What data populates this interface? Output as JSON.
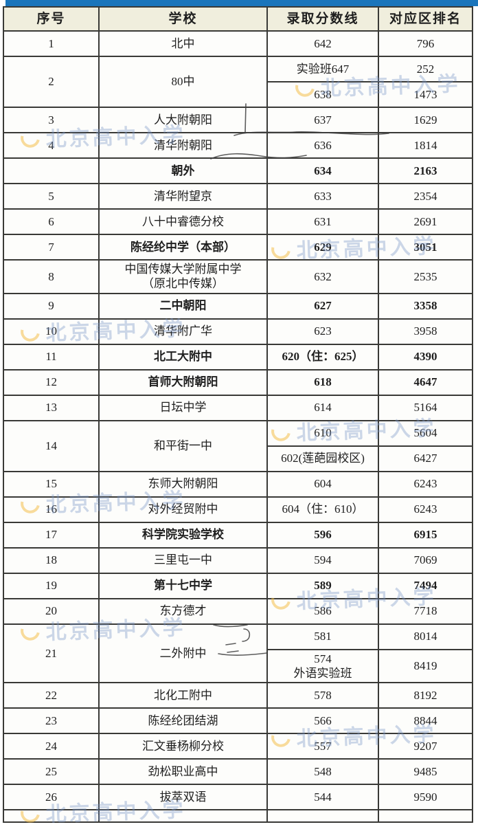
{
  "header": {
    "columns": [
      "序号",
      "学校",
      "录取分数线",
      "对应区排名"
    ]
  },
  "rows": [
    {
      "no": "1",
      "school": "北中",
      "bold": false,
      "entries": [
        {
          "score": "642",
          "rank": "796"
        }
      ]
    },
    {
      "no": "2",
      "school": "80中",
      "bold": false,
      "entries": [
        {
          "score": "实验班647",
          "rank": "252"
        },
        {
          "score": "638",
          "rank": "1473"
        }
      ]
    },
    {
      "no": "3",
      "school": "人大附朝阳",
      "bold": false,
      "entries": [
        {
          "score": "637",
          "rank": "1629"
        }
      ]
    },
    {
      "no": "4",
      "school": "清华附朝阳",
      "bold": false,
      "entries": [
        {
          "score": "636",
          "rank": "1814"
        }
      ]
    },
    {
      "no": "",
      "school": "朝外",
      "bold": true,
      "entries": [
        {
          "score": "634",
          "rank": "2163"
        }
      ]
    },
    {
      "no": "5",
      "school": "清华附望京",
      "bold": false,
      "entries": [
        {
          "score": "633",
          "rank": "2354"
        }
      ]
    },
    {
      "no": "6",
      "school": "八十中睿德分校",
      "bold": false,
      "entries": [
        {
          "score": "631",
          "rank": "2691"
        }
      ]
    },
    {
      "no": "7",
      "school": "陈经纶中学（本部）",
      "bold": true,
      "entries": [
        {
          "score": "629",
          "rank": "3051"
        }
      ]
    },
    {
      "no": "8",
      "school": "中国传媒大学附属中学\n（原北中传媒）",
      "bold": false,
      "entries": [
        {
          "score": "632",
          "rank": "2535"
        }
      ]
    },
    {
      "no": "9",
      "school": "二中朝阳",
      "bold": true,
      "entries": [
        {
          "score": "627",
          "rank": "3358"
        }
      ]
    },
    {
      "no": "10",
      "school": "清华附广华",
      "bold": false,
      "entries": [
        {
          "score": "623",
          "rank": "3958"
        }
      ]
    },
    {
      "no": "11",
      "school": "北工大附中",
      "bold": true,
      "entries": [
        {
          "score": "620（住：625）",
          "rank": "4390"
        }
      ]
    },
    {
      "no": "12",
      "school": "首师大附朝阳",
      "bold": true,
      "entries": [
        {
          "score": "618",
          "rank": "4647"
        }
      ]
    },
    {
      "no": "13",
      "school": "日坛中学",
      "bold": false,
      "entries": [
        {
          "score": "614",
          "rank": "5164"
        }
      ]
    },
    {
      "no": "14",
      "school": "和平街一中",
      "bold": false,
      "entries": [
        {
          "score": "610",
          "rank": "5604"
        },
        {
          "score": "602(莲葩园校区)",
          "rank": "6427"
        }
      ]
    },
    {
      "no": "15",
      "school": "东师大附朝阳",
      "bold": false,
      "entries": [
        {
          "score": "604",
          "rank": "6243"
        }
      ]
    },
    {
      "no": "16",
      "school": "对外经贸附中",
      "bold": false,
      "entries": [
        {
          "score": "604（住：610）",
          "rank": "6243"
        }
      ]
    },
    {
      "no": "17",
      "school": "科学院实验学校",
      "bold": true,
      "entries": [
        {
          "score": "596",
          "rank": "6915"
        }
      ]
    },
    {
      "no": "18",
      "school": "三里屯一中",
      "bold": false,
      "entries": [
        {
          "score": "594",
          "rank": "7069"
        }
      ]
    },
    {
      "no": "19",
      "school": "第十七中学",
      "bold": true,
      "entries": [
        {
          "score": "589",
          "rank": "7494"
        }
      ]
    },
    {
      "no": "20",
      "school": "东方德才",
      "bold": false,
      "entries": [
        {
          "score": "586",
          "rank": "7718"
        }
      ]
    },
    {
      "no": "21",
      "school": "二外附中",
      "bold": false,
      "entries": [
        {
          "score": "581",
          "rank": "8014"
        },
        {
          "score": "574\n外语实验班",
          "rank": "8419"
        }
      ]
    },
    {
      "no": "22",
      "school": "北化工附中",
      "bold": false,
      "entries": [
        {
          "score": "578",
          "rank": "8192"
        }
      ]
    },
    {
      "no": "23",
      "school": "陈经纶团结湖",
      "bold": false,
      "entries": [
        {
          "score": "566",
          "rank": "8844"
        }
      ]
    },
    {
      "no": "24",
      "school": "汇文垂杨柳分校",
      "bold": false,
      "entries": [
        {
          "score": "557",
          "rank": "9207"
        }
      ]
    },
    {
      "no": "25",
      "school": "劲松职业高中",
      "bold": false,
      "entries": [
        {
          "score": "548",
          "rank": "9485"
        }
      ]
    },
    {
      "no": "26",
      "school": "拔萃双语",
      "bold": false,
      "entries": [
        {
          "score": "544",
          "rank": "9590"
        }
      ]
    }
  ],
  "watermark": {
    "text": "北京高中入学"
  },
  "colors": {
    "top_bar": "#1a75bb",
    "header_bg": "#f0eedd",
    "border": "#393936",
    "watermark_text": "#7a96c7",
    "watermark_swirl": "#f3ba3c"
  }
}
